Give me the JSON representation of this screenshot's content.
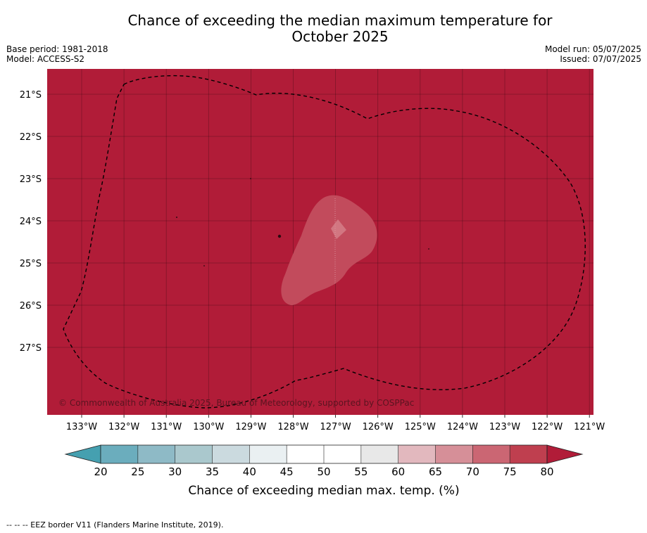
{
  "title_line1": "Chance of exceeding the median maximum temperature for",
  "title_line2": "October 2025",
  "base_period": "Base period: 1981-2018",
  "model": "Model: ACCESS-S2",
  "model_run": "Model run: 05/07/2025",
  "issued": "Issued: 07/07/2025",
  "copyright": "© Commonwealth of Australia 2025, Bureau of Meteorology, supported by COSPPac",
  "lat_labels": [
    "21°S",
    "22°S",
    "23°S",
    "24°S",
    "25°S",
    "26°S",
    "27°S"
  ],
  "lon_labels": [
    "133°W",
    "132°W",
    "131°W",
    "130°W",
    "129°W",
    "128°W",
    "127°W",
    "126°W",
    "125°W",
    "124°W",
    "123°W",
    "122°W",
    "121°W"
  ],
  "colorbar": {
    "ticks": [
      "20",
      "25",
      "30",
      "35",
      "40",
      "45",
      "50",
      "55",
      "60",
      "65",
      "70",
      "75",
      "80"
    ],
    "label": "Chance of exceeding median max. temp. (%)",
    "colors": [
      "#6badbd",
      "#8ebac6",
      "#aac8cd",
      "#cbdadf",
      "#eaf0f2",
      "#ffffff",
      "#ffffff",
      "#e8e8e8",
      "#e2b8be",
      "#d68f98",
      "#cb6673",
      "#bf3f4f"
    ],
    "under_color": "#45a0b0",
    "over_color": "#b11c38"
  },
  "map_fill_color": "#b11c38",
  "inner_region_color": "#c24b5c",
  "innermost_region_color": "#d27681",
  "footer_note": "--  --  -- EEZ border V11 (Flanders Marine Institute, 2019)."
}
